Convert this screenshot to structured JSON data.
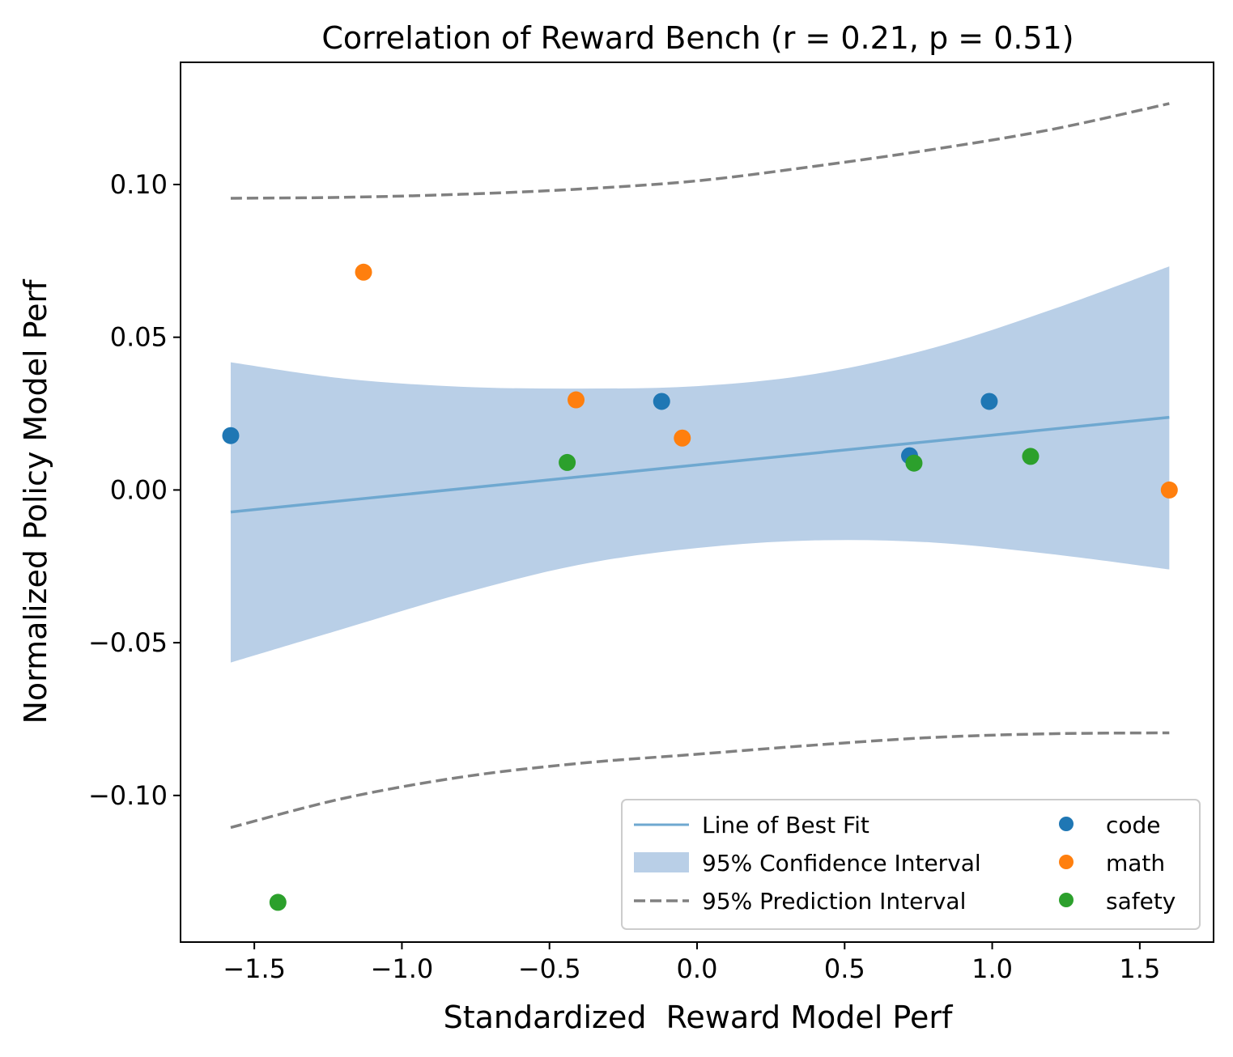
{
  "chart_data": {
    "type": "scatter",
    "title": "Correlation of Reward Bench (r = 0.21, p = 0.51)",
    "xlabel": "Standardized  Reward Model Perf",
    "ylabel": "Normalized Policy Model Perf",
    "xlim": [
      -1.75,
      1.75
    ],
    "ylim": [
      -0.148,
      0.14
    ],
    "x_ticks": [
      -1.5,
      -1.0,
      -0.5,
      0.0,
      0.5,
      1.0,
      1.5
    ],
    "x_tick_labels": [
      "−1.5",
      "−1.0",
      "−0.5",
      "0.0",
      "0.5",
      "1.0",
      "1.5"
    ],
    "y_ticks": [
      0.1,
      0.05,
      0.0,
      -0.05,
      -0.1
    ],
    "y_tick_labels": [
      "0.10",
      "0.05",
      "0.00",
      "−0.05",
      "−0.10"
    ],
    "series": [
      {
        "name": "code",
        "color": "#1f77b4",
        "points": [
          [
            -1.58,
            0.0178
          ],
          [
            -0.12,
            0.029
          ],
          [
            0.72,
            0.0112
          ],
          [
            0.99,
            0.029
          ]
        ]
      },
      {
        "name": "math",
        "color": "#ff7f0e",
        "points": [
          [
            -1.13,
            0.0713
          ],
          [
            -0.41,
            0.0295
          ],
          [
            -0.05,
            0.017
          ],
          [
            1.6,
            0.0
          ]
        ]
      },
      {
        "name": "safety",
        "color": "#2ca02c",
        "points": [
          [
            -1.42,
            -0.135
          ],
          [
            -0.44,
            0.009
          ],
          [
            0.735,
            0.0088
          ],
          [
            1.13,
            0.011
          ]
        ]
      }
    ],
    "best_fit": {
      "name": "Line of Best Fit",
      "color": "#6fa8d0",
      "x0": -1.58,
      "y0": -0.0072,
      "x1": 1.6,
      "y1": 0.0238
    },
    "confidence_interval": {
      "name": "95% Confidence Interval",
      "color": "#b9cfe7",
      "x": [
        -1.58,
        -1.2,
        -0.8,
        -0.4,
        0.0,
        0.4,
        0.8,
        1.2,
        1.6
      ],
      "upper": [
        0.0418,
        0.0365,
        0.0338,
        0.0332,
        0.034,
        0.038,
        0.0465,
        0.059,
        0.0732
      ],
      "lower": [
        -0.0565,
        -0.0455,
        -0.034,
        -0.0245,
        -0.019,
        -0.0165,
        -0.0172,
        -0.021,
        -0.026
      ]
    },
    "prediction_interval": {
      "name": "95% Prediction Interval",
      "color": "#808080",
      "x": [
        -1.58,
        -1.2,
        -0.8,
        -0.4,
        0.0,
        0.4,
        0.8,
        1.2,
        1.6
      ],
      "upper": [
        0.0955,
        0.0958,
        0.0968,
        0.0985,
        0.1012,
        0.106,
        0.1115,
        0.118,
        0.1265
      ],
      "lower": [
        -0.1105,
        -0.101,
        -0.094,
        -0.0895,
        -0.0865,
        -0.0835,
        -0.081,
        -0.0798,
        -0.0795
      ]
    },
    "legend": {
      "placement": "lower-right",
      "entries": [
        "Line of Best Fit",
        "95% Confidence Interval",
        "95% Prediction Interval",
        "code",
        "math",
        "safety"
      ]
    }
  }
}
